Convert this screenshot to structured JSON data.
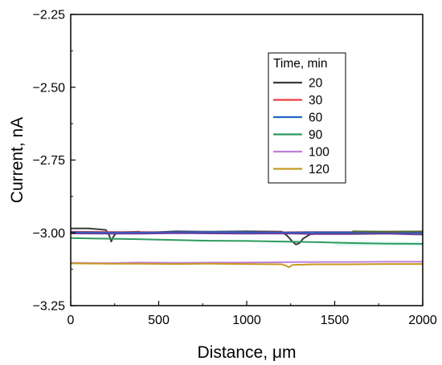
{
  "chart_data": {
    "type": "line",
    "xlabel": "Distance, μm",
    "ylabel": "Current, nA",
    "xlim": [
      0,
      2000
    ],
    "ylim": [
      -3.25,
      -2.25
    ],
    "x_ticks": [
      "0",
      "500",
      "1000",
      "1500",
      "2000"
    ],
    "y_ticks": [
      "−2.25",
      "−2.50",
      "−2.75",
      "−3.00",
      "−3.25"
    ],
    "grid": false,
    "legend": {
      "title": "Time, min",
      "placement": "top-right"
    },
    "series": [
      {
        "name": "20",
        "color": "#3b3b3b",
        "x": [
          0,
          100,
          200,
          220,
          230,
          245,
          260,
          300,
          390,
          400,
          600,
          800,
          1000,
          1200,
          1230,
          1260,
          1280,
          1300,
          1320,
          1360,
          1450,
          1600,
          1800,
          2000
        ],
        "y": [
          -2.985,
          -2.985,
          -2.99,
          -3.01,
          -3.03,
          -3.01,
          -3.0,
          -2.998,
          -2.996,
          -3.0,
          -2.995,
          -2.996,
          -2.995,
          -2.996,
          -3.01,
          -3.03,
          -3.04,
          -3.035,
          -3.02,
          -3.005,
          -3.0,
          -3.0,
          -3.0,
          -3.0
        ]
      },
      {
        "name": "30",
        "color": "#ee3b3b",
        "x": [
          0,
          200,
          400,
          600,
          800,
          1000,
          1200,
          1400,
          1600,
          1800,
          2000
        ],
        "y": [
          -2.996,
          -2.997,
          -2.997,
          -2.998,
          -2.997,
          -2.998,
          -2.998,
          -2.997,
          -2.997,
          -2.996,
          -2.996
        ]
      },
      {
        "name": "60",
        "color": "#2563c9",
        "x": [
          0,
          200,
          400,
          600,
          800,
          1000,
          1200,
          1400,
          1600,
          1800,
          2000
        ],
        "y": [
          -2.998,
          -2.999,
          -2.999,
          -2.998,
          -2.997,
          -2.998,
          -2.999,
          -2.998,
          -2.998,
          -2.999,
          -2.999
        ]
      },
      {
        "name": "90",
        "color": "#2e9a5e",
        "x": [
          0,
          200,
          400,
          600,
          800,
          1000,
          1200,
          1400,
          1600,
          1800,
          2000
        ],
        "y": [
          -3.018,
          -3.02,
          -3.022,
          -3.025,
          -3.027,
          -3.028,
          -3.03,
          -3.032,
          -3.035,
          -3.037,
          -3.038
        ]
      },
      {
        "name": "100",
        "color": "#bf7fdc",
        "x": [
          0,
          200,
          400,
          600,
          800,
          1000,
          1200,
          1400,
          1600,
          1800,
          2000
        ],
        "y": [
          -3.103,
          -3.104,
          -3.102,
          -3.103,
          -3.102,
          -3.102,
          -3.101,
          -3.1,
          -3.1,
          -3.099,
          -3.099
        ]
      },
      {
        "name": "120",
        "color": "#c89a1e",
        "x": [
          0,
          200,
          400,
          600,
          800,
          1000,
          1200,
          1220,
          1240,
          1260,
          1400,
          1600,
          1800,
          2000
        ],
        "y": [
          -3.105,
          -3.106,
          -3.106,
          -3.107,
          -3.106,
          -3.107,
          -3.108,
          -3.112,
          -3.118,
          -3.11,
          -3.108,
          -3.108,
          -3.107,
          -3.107
        ]
      }
    ],
    "overlay_series": [
      {
        "color": "#6a3d9a",
        "x": [
          0,
          200,
          400,
          600,
          800,
          1000,
          1200,
          1400,
          1600,
          1800,
          2000
        ],
        "y": [
          -3.002,
          -3.003,
          -3.003,
          -3.001,
          -3.002,
          -3.003,
          -3.002,
          -3.004,
          -3.004,
          -3.003,
          -3.006
        ]
      },
      {
        "color": "#556b2f",
        "x": [
          1600,
          1800,
          2000
        ],
        "y": [
          -2.995,
          -2.996,
          -2.995
        ]
      }
    ],
    "band": {
      "color": "#c8f5ee",
      "x": [
        1500,
        2000
      ],
      "y": [
        -3.045,
        -3.03
      ]
    }
  }
}
